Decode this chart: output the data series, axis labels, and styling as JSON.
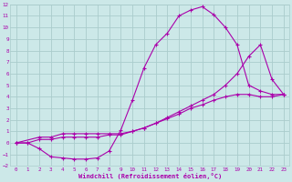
{
  "xlabel": "Windchill (Refroidissement éolien,°C)",
  "bg_color": "#cce8e8",
  "grid_color": "#aacccc",
  "line_color": "#aa00aa",
  "xlim": [
    -0.5,
    23.5
  ],
  "ylim": [
    -2,
    12
  ],
  "xticks": [
    0,
    1,
    2,
    3,
    4,
    5,
    6,
    7,
    8,
    9,
    10,
    11,
    12,
    13,
    14,
    15,
    16,
    17,
    18,
    19,
    20,
    21,
    22,
    23
  ],
  "yticks": [
    -2,
    -1,
    0,
    1,
    2,
    3,
    4,
    5,
    6,
    7,
    8,
    9,
    10,
    11,
    12
  ],
  "line1_x": [
    0,
    1,
    2,
    3,
    4,
    5,
    6,
    7,
    8,
    9,
    10,
    11,
    12,
    13,
    14,
    15,
    16,
    17,
    18,
    19,
    20,
    21,
    22,
    23
  ],
  "line1_y": [
    0,
    0,
    -0.5,
    -1.2,
    -1.3,
    -1.4,
    -1.4,
    -1.3,
    -0.7,
    1.1,
    3.7,
    6.5,
    8.5,
    9.5,
    11.0,
    11.5,
    11.8,
    11.1,
    10.0,
    8.5,
    5.0,
    4.5,
    4.2,
    4.2
  ],
  "line2_x": [
    0,
    2,
    3,
    4,
    5,
    6,
    7,
    8,
    9,
    10,
    11,
    12,
    13,
    14,
    15,
    16,
    17,
    18,
    19,
    20,
    21,
    22,
    23
  ],
  "line2_y": [
    0,
    0.5,
    0.5,
    0.8,
    0.8,
    0.8,
    0.8,
    0.8,
    0.8,
    1.0,
    1.3,
    1.7,
    2.2,
    2.7,
    3.2,
    3.7,
    4.2,
    5.0,
    6.0,
    7.5,
    8.5,
    5.5,
    4.2
  ],
  "line3_x": [
    0,
    1,
    2,
    3,
    4,
    5,
    6,
    7,
    8,
    9,
    10,
    11,
    12,
    13,
    14,
    15,
    16,
    17,
    18,
    19,
    20,
    21,
    22,
    23
  ],
  "line3_y": [
    0,
    0,
    0.3,
    0.3,
    0.5,
    0.5,
    0.5,
    0.5,
    0.7,
    0.7,
    1.0,
    1.3,
    1.7,
    2.1,
    2.5,
    3.0,
    3.3,
    3.7,
    4.0,
    4.2,
    4.2,
    4.0,
    4.0,
    4.2
  ]
}
